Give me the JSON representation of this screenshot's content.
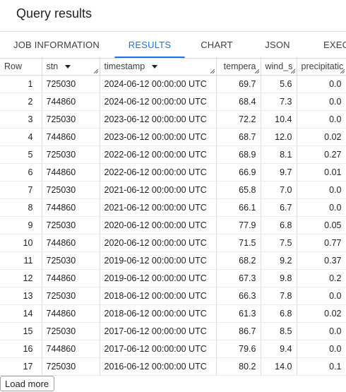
{
  "title": "Query results",
  "tabs": [
    {
      "label": "JOB INFORMATION"
    },
    {
      "label": "RESULTS"
    },
    {
      "label": "CHART"
    },
    {
      "label": "JSON"
    },
    {
      "label": "EXEC"
    }
  ],
  "active_tab": "RESULTS",
  "accent_color": "#1a73e8",
  "columns": [
    "Row",
    "stn",
    "timestamp",
    "tempera",
    "wind_s",
    "precipitatic"
  ],
  "rows": [
    [
      "1",
      "725030",
      "2024-06-12 00:00:00 UTC",
      "69.7",
      "5.6",
      "0.0"
    ],
    [
      "2",
      "744860",
      "2024-06-12 00:00:00 UTC",
      "68.4",
      "7.3",
      "0.0"
    ],
    [
      "3",
      "725030",
      "2023-06-12 00:00:00 UTC",
      "72.2",
      "10.4",
      "0.0"
    ],
    [
      "4",
      "744860",
      "2023-06-12 00:00:00 UTC",
      "68.7",
      "12.0",
      "0.02"
    ],
    [
      "5",
      "725030",
      "2022-06-12 00:00:00 UTC",
      "68.9",
      "8.1",
      "0.27"
    ],
    [
      "6",
      "744860",
      "2022-06-12 00:00:00 UTC",
      "66.9",
      "9.7",
      "0.01"
    ],
    [
      "7",
      "725030",
      "2021-06-12 00:00:00 UTC",
      "65.8",
      "7.0",
      "0.0"
    ],
    [
      "8",
      "744860",
      "2021-06-12 00:00:00 UTC",
      "66.1",
      "6.7",
      "0.0"
    ],
    [
      "9",
      "725030",
      "2020-06-12 00:00:00 UTC",
      "77.9",
      "6.8",
      "0.05"
    ],
    [
      "10",
      "744860",
      "2020-06-12 00:00:00 UTC",
      "71.5",
      "7.5",
      "0.77"
    ],
    [
      "11",
      "725030",
      "2019-06-12 00:00:00 UTC",
      "68.2",
      "9.2",
      "0.37"
    ],
    [
      "12",
      "744860",
      "2019-06-12 00:00:00 UTC",
      "67.3",
      "9.8",
      "0.2"
    ],
    [
      "13",
      "725030",
      "2018-06-12 00:00:00 UTC",
      "66.3",
      "7.8",
      "0.0"
    ],
    [
      "14",
      "744860",
      "2018-06-12 00:00:00 UTC",
      "61.3",
      "6.8",
      "0.02"
    ],
    [
      "15",
      "725030",
      "2017-06-12 00:00:00 UTC",
      "86.7",
      "8.5",
      "0.0"
    ],
    [
      "16",
      "744860",
      "2017-06-12 00:00:00 UTC",
      "79.6",
      "9.4",
      "0.0"
    ],
    [
      "17",
      "725030",
      "2016-06-12 00:00:00 UTC",
      "80.2",
      "14.0",
      "0.1"
    ]
  ],
  "load_more_label": "Load more"
}
